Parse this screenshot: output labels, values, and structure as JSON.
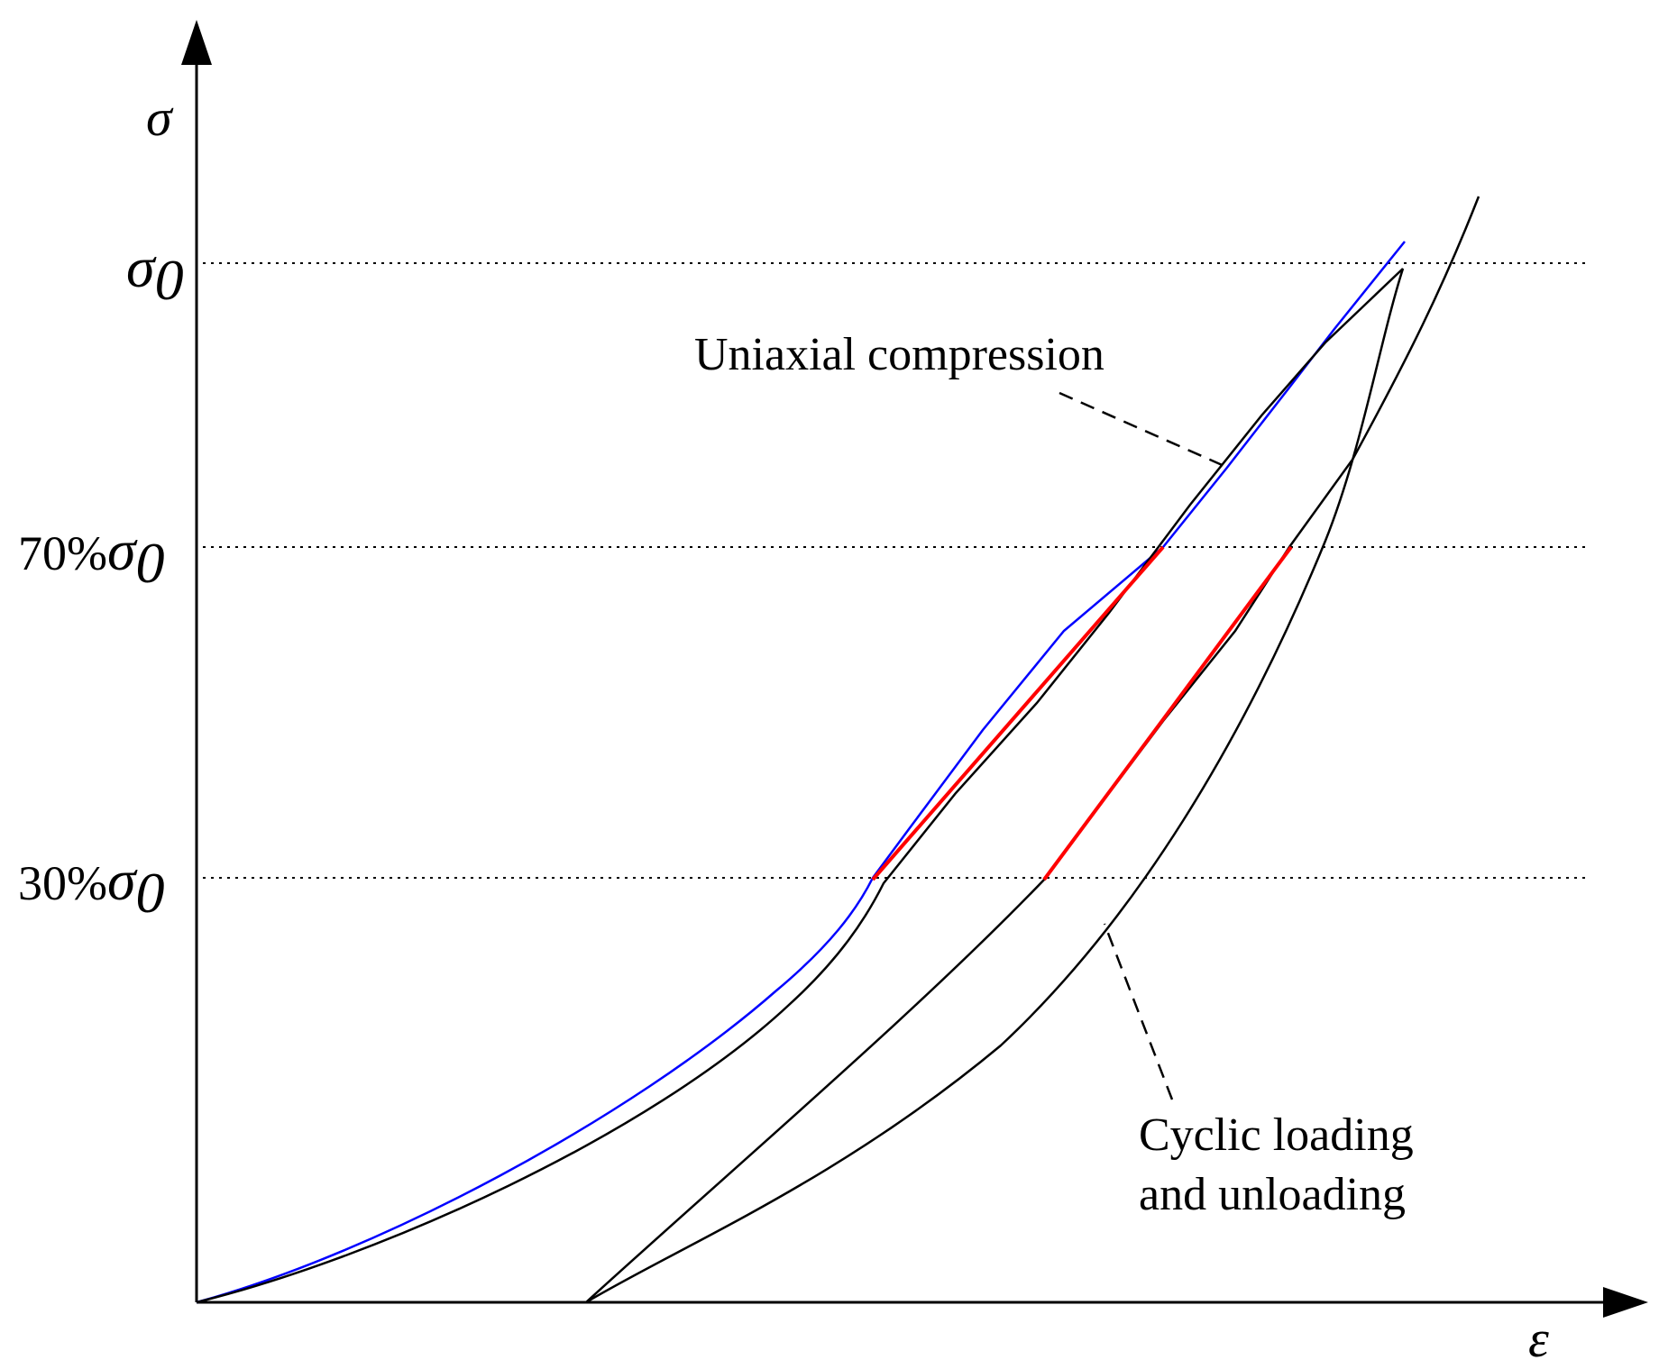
{
  "axes": {
    "y_label": "σ",
    "x_label": "ε"
  },
  "levels": [
    {
      "id": "sigma0",
      "prefix": "",
      "symbol": "σ",
      "subscript": "0",
      "value_fraction": 1.0
    },
    {
      "id": "seventy",
      "prefix": "70%",
      "symbol": "σ",
      "subscript": "0",
      "value_fraction": 0.7
    },
    {
      "id": "thirty",
      "prefix": "30%",
      "symbol": "σ",
      "subscript": "0",
      "value_fraction": 0.3
    }
  ],
  "annotations": {
    "uniaxial": "Uniaxial compression",
    "cyclic_line1": "Cyclic loading",
    "cyclic_line2": "and unloading"
  },
  "colors": {
    "uniaxial_curve": "#0000ff",
    "secant_segments": "#ff0000",
    "cyclic_curves": "#000000",
    "guide_lines": "#000000"
  }
}
